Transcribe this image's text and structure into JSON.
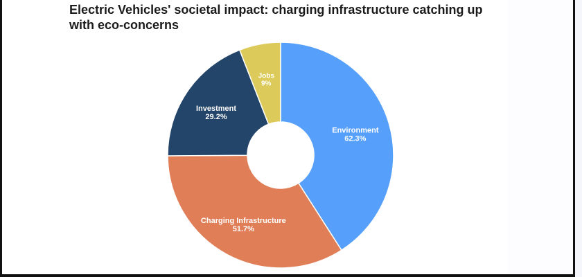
{
  "chart_data": {
    "type": "pie",
    "title": "Electric Vehicles' societal impact: charging infrastructure catching up with eco-concerns",
    "categories": [
      "Environment",
      "Charging Infrastructure",
      "Investment",
      "Jobs"
    ],
    "values": [
      62.3,
      51.7,
      29.2,
      9
    ],
    "value_labels": [
      "62.3%",
      "51.7%",
      "29.2%",
      "9%"
    ],
    "colors": [
      "#56a0fb",
      "#e07f57",
      "#234569",
      "#dccb5a"
    ],
    "label_colors": [
      "#ffffff",
      "#ffffff",
      "#ffffff",
      "#ffffff"
    ],
    "donut": true,
    "start_angle": "top",
    "direction": "clockwise",
    "legend": "none"
  }
}
